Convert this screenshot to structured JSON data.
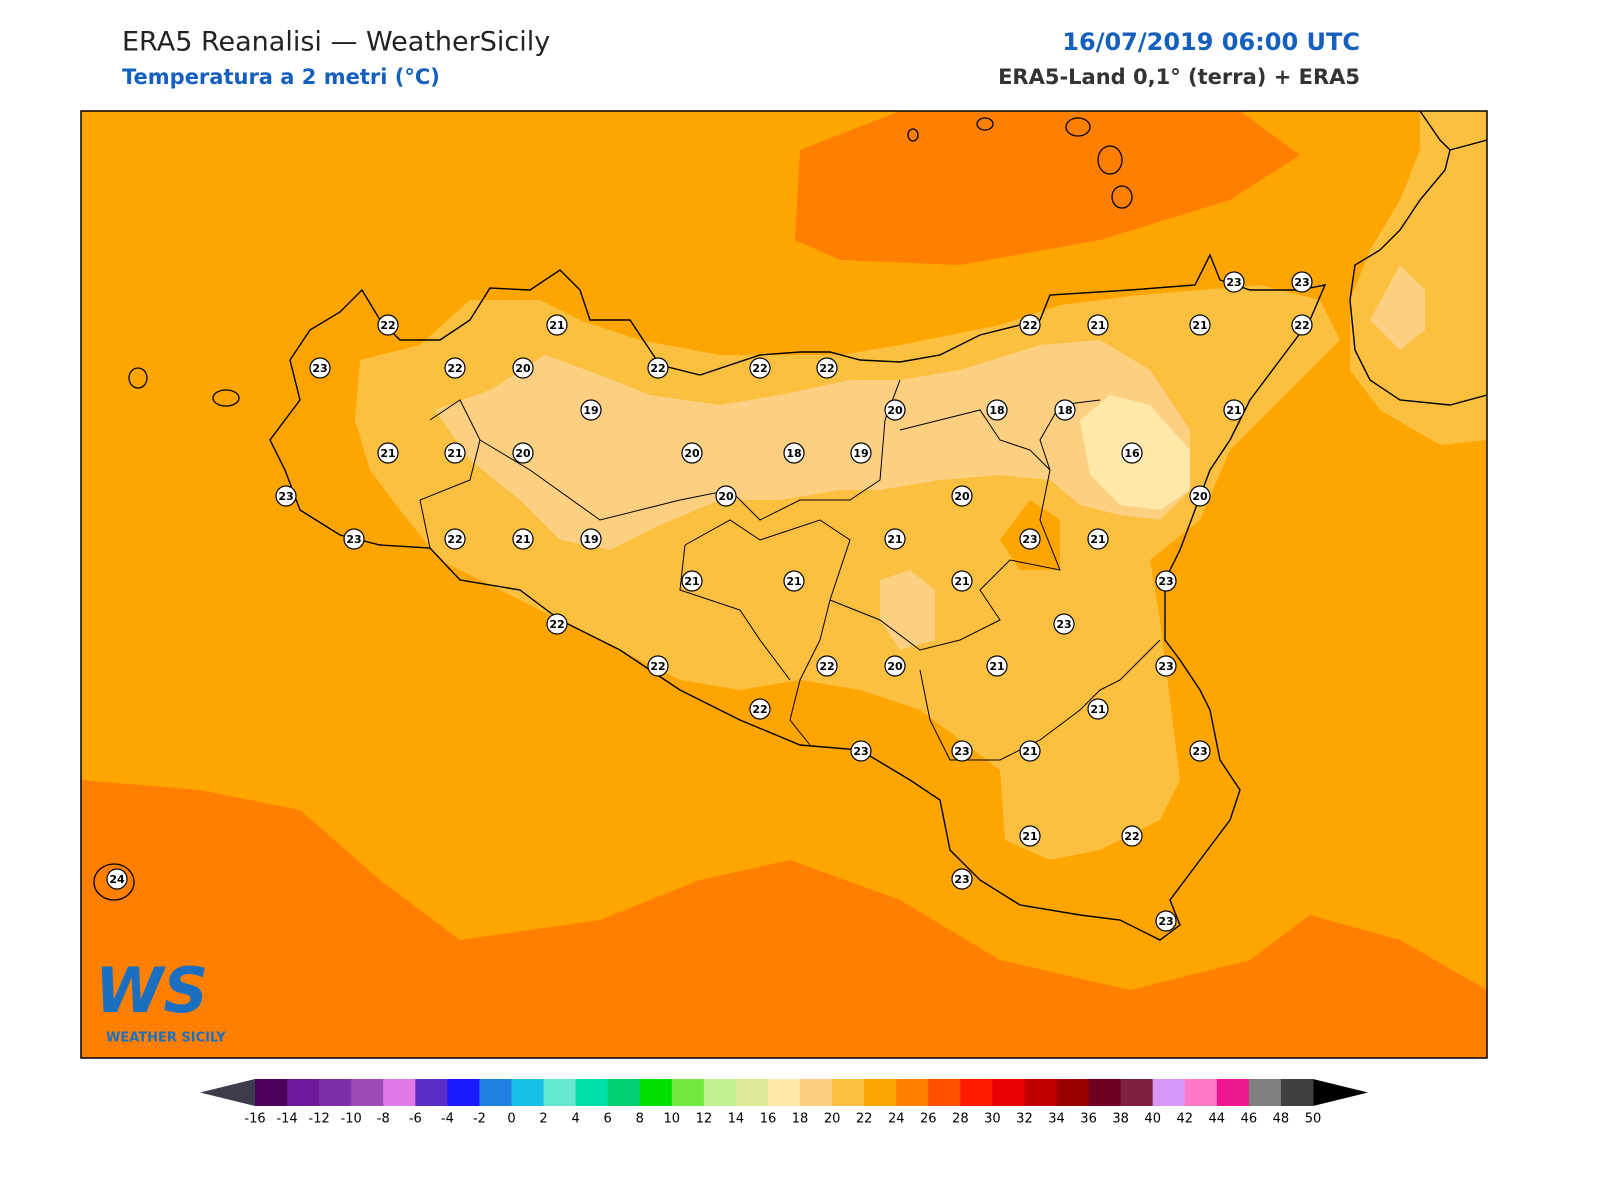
{
  "header": {
    "title": "ERA5 Reanalisi — WeatherSicily",
    "subtitle": "Temperatura a 2 metri (°C)",
    "datetime": "16/07/2019 06:00 UTC",
    "source": "ERA5-Land 0,1° (terra) + ERA5"
  },
  "logo": {
    "text": "WS",
    "caption": "WEATHER SICILY"
  },
  "stations": [
    22,
    21,
    23,
    22,
    20,
    22,
    22,
    22,
    19,
    20,
    18,
    18,
    21,
    21,
    21,
    20,
    20,
    18,
    19,
    16,
    20,
    20,
    20,
    23,
    23,
    22,
    21,
    19,
    21,
    23,
    21,
    21,
    21,
    21,
    23,
    22,
    23,
    22,
    22,
    20,
    21,
    23,
    22,
    21,
    23,
    23,
    21,
    23,
    21,
    22,
    23,
    23,
    24,
    23,
    23,
    22,
    21,
    21,
    22
  ],
  "colorbar": {
    "ticks": [
      -16,
      -14,
      -12,
      -10,
      -8,
      -6,
      -4,
      -2,
      0,
      2,
      4,
      6,
      8,
      10,
      12,
      14,
      16,
      18,
      20,
      22,
      24,
      26,
      28,
      30,
      32,
      34,
      36,
      38,
      40,
      42,
      44,
      46,
      48,
      50
    ],
    "colors": [
      "#4b0059",
      "#6a1a9a",
      "#7d2fa8",
      "#9d4ab8",
      "#e07ae8",
      "#5a2fc8",
      "#1a1aff",
      "#1f7fdf",
      "#18c0e8",
      "#66e8d0",
      "#00e0a8",
      "#00d070",
      "#00e000",
      "#70e840",
      "#c0f090",
      "#e0e898",
      "#ffe8a8",
      "#fcd080",
      "#fcc040",
      "#ffa500",
      "#ff8000",
      "#ff5000",
      "#ff1a00",
      "#e80000",
      "#c00000",
      "#980000",
      "#700020",
      "#802040",
      "#d898f8",
      "#ff78c8",
      "#f01890",
      "#808080",
      "#404040"
    ],
    "under_color": "#3c3c4c",
    "over_color": "#000000"
  }
}
